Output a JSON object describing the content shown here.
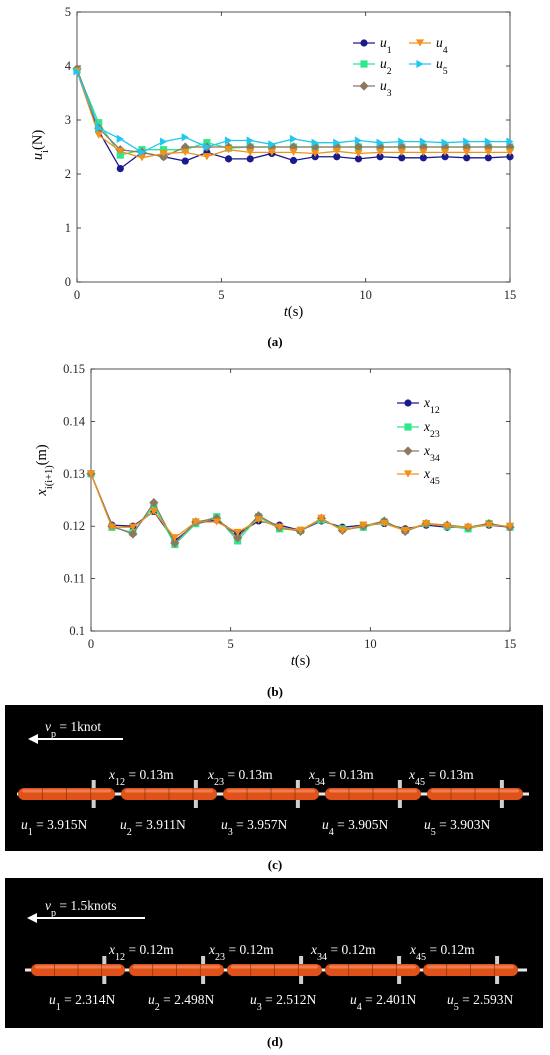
{
  "chart_data": [
    {
      "type": "line",
      "panel": "a",
      "caption": "(a)",
      "ylabel": "u_i(N)",
      "xlabel": "t(s)",
      "xlim": [
        0,
        15
      ],
      "ylim": [
        0,
        5
      ],
      "xticks": [
        0,
        5,
        10,
        15
      ],
      "yticks": [
        0,
        1,
        2,
        3,
        4,
        5
      ],
      "grid": false,
      "legend_position": "top-right",
      "x": [
        0,
        0.75,
        1.5,
        2.25,
        3.0,
        3.75,
        4.5,
        5.25,
        6.0,
        6.75,
        7.5,
        8.25,
        9.0,
        9.75,
        10.5,
        11.25,
        12.0,
        12.75,
        13.5,
        14.25,
        15.0
      ],
      "series": [
        {
          "name": "u_1",
          "base": "u",
          "sub": "1",
          "color": "#1a1a8c",
          "marker": "circle",
          "values": [
            3.92,
            2.8,
            2.1,
            2.4,
            2.32,
            2.24,
            2.4,
            2.28,
            2.28,
            2.38,
            2.25,
            2.32,
            2.32,
            2.28,
            2.32,
            2.3,
            2.3,
            2.32,
            2.3,
            2.3,
            2.32
          ]
        },
        {
          "name": "u_2",
          "base": "u",
          "sub": "2",
          "color": "#2ee890",
          "marker": "square",
          "values": [
            3.92,
            2.95,
            2.35,
            2.45,
            2.45,
            2.45,
            2.58,
            2.48,
            2.5,
            2.5,
            2.5,
            2.5,
            2.5,
            2.5,
            2.5,
            2.5,
            2.5,
            2.5,
            2.5,
            2.5,
            2.5
          ]
        },
        {
          "name": "u_3",
          "base": "u",
          "sub": "3",
          "color": "#8c7860",
          "marker": "diamond",
          "values": [
            3.95,
            2.85,
            2.45,
            2.4,
            2.32,
            2.5,
            2.5,
            2.5,
            2.5,
            2.5,
            2.5,
            2.5,
            2.5,
            2.5,
            2.5,
            2.5,
            2.5,
            2.5,
            2.5,
            2.5,
            2.5
          ]
        },
        {
          "name": "u_4",
          "base": "u",
          "sub": "4",
          "color": "#f39018",
          "marker": "triangle-down",
          "values": [
            3.9,
            2.72,
            2.42,
            2.3,
            2.38,
            2.4,
            2.32,
            2.45,
            2.4,
            2.4,
            2.4,
            2.38,
            2.42,
            2.38,
            2.4,
            2.4,
            2.4,
            2.4,
            2.4,
            2.4,
            2.4
          ]
        },
        {
          "name": "u_5",
          "base": "u",
          "sub": "5",
          "color": "#20c8f0",
          "marker": "triangle-right",
          "values": [
            3.9,
            2.85,
            2.65,
            2.4,
            2.6,
            2.68,
            2.5,
            2.62,
            2.62,
            2.55,
            2.65,
            2.58,
            2.58,
            2.62,
            2.58,
            2.6,
            2.6,
            2.58,
            2.6,
            2.6,
            2.6
          ]
        }
      ]
    },
    {
      "type": "line",
      "panel": "b",
      "caption": "(b)",
      "ylabel": "x_{i(i+1)}(m)",
      "xlabel": "t(s)",
      "xlim": [
        0,
        15
      ],
      "ylim": [
        0.1,
        0.15
      ],
      "xticks": [
        0,
        5,
        10,
        15
      ],
      "yticks": [
        0.1,
        0.11,
        0.12,
        0.13,
        0.14,
        0.15
      ],
      "grid": false,
      "legend_position": "top-right",
      "x": [
        0,
        0.75,
        1.5,
        2.25,
        3.0,
        3.75,
        4.5,
        5.25,
        6.0,
        6.75,
        7.5,
        8.25,
        9.0,
        9.75,
        10.5,
        11.25,
        12.0,
        12.75,
        13.5,
        14.25,
        15.0
      ],
      "series": [
        {
          "name": "x_12",
          "base": "x",
          "sub": "12",
          "color": "#1a1a8c",
          "marker": "circle",
          "values": [
            0.13,
            0.1202,
            0.12,
            0.1228,
            0.1172,
            0.1205,
            0.1212,
            0.1185,
            0.121,
            0.1202,
            0.1192,
            0.121,
            0.1198,
            0.1202,
            0.1205,
            0.1195,
            0.1202,
            0.1198,
            0.1198,
            0.1202,
            0.1198
          ]
        },
        {
          "name": "x_23",
          "base": "x",
          "sub": "23",
          "color": "#2ee890",
          "marker": "square",
          "values": [
            0.13,
            0.1198,
            0.1188,
            0.1238,
            0.1165,
            0.1205,
            0.1218,
            0.1172,
            0.1218,
            0.1195,
            0.1192,
            0.1212,
            0.1195,
            0.1198,
            0.1208,
            0.1192,
            0.1205,
            0.12,
            0.1195,
            0.1205,
            0.1198
          ]
        },
        {
          "name": "x_34",
          "base": "x",
          "sub": "34",
          "color": "#8c7860",
          "marker": "diamond",
          "values": [
            0.13,
            0.12,
            0.1185,
            0.1245,
            0.1168,
            0.1208,
            0.1215,
            0.1178,
            0.122,
            0.1198,
            0.119,
            0.1215,
            0.1192,
            0.12,
            0.121,
            0.119,
            0.1205,
            0.1202,
            0.1198,
            0.1205,
            0.1198
          ]
        },
        {
          "name": "x_45",
          "base": "x",
          "sub": "45",
          "color": "#f39018",
          "marker": "triangle-down",
          "values": [
            0.13,
            0.1198,
            0.1198,
            0.1228,
            0.1178,
            0.1208,
            0.1208,
            0.1188,
            0.1212,
            0.1198,
            0.1192,
            0.1215,
            0.1192,
            0.1202,
            0.1205,
            0.1192,
            0.1205,
            0.12,
            0.1198,
            0.1202,
            0.12
          ]
        }
      ]
    }
  ],
  "scenes": [
    {
      "panel": "c",
      "caption": "(c)",
      "speed_label": {
        "base": "v",
        "sub": "p",
        "rest": " = 1knot"
      },
      "spacings": [
        {
          "base": "x",
          "sub": "12",
          "rest": " = 0.13m"
        },
        {
          "base": "x",
          "sub": "23",
          "rest": " = 0.13m"
        },
        {
          "base": "x",
          "sub": "34",
          "rest": " = 0.13m"
        },
        {
          "base": "x",
          "sub": "45",
          "rest": " = 0.13m"
        }
      ],
      "forces": [
        {
          "base": "u",
          "sub": "1",
          "rest": " = 3.915N"
        },
        {
          "base": "u",
          "sub": "2",
          "rest": " = 3.911N"
        },
        {
          "base": "u",
          "sub": "3",
          "rest": " = 3.957N"
        },
        {
          "base": "u",
          "sub": "4",
          "rest": " = 3.905N"
        },
        {
          "base": "u",
          "sub": "5",
          "rest": " = 3.903N"
        }
      ],
      "vehicle_color": "#e0521a"
    },
    {
      "panel": "d",
      "caption": "(d)",
      "speed_label": {
        "base": "v",
        "sub": "p",
        "rest": " = 1.5knots"
      },
      "spacings": [
        {
          "base": "x",
          "sub": "12",
          "rest": " = 0.12m"
        },
        {
          "base": "x",
          "sub": "23",
          "rest": " = 0.12m"
        },
        {
          "base": "x",
          "sub": "34",
          "rest": " = 0.12m"
        },
        {
          "base": "x",
          "sub": "45",
          "rest": " = 0.12m"
        }
      ],
      "forces": [
        {
          "base": "u",
          "sub": "1",
          "rest": " = 2.314N"
        },
        {
          "base": "u",
          "sub": "2",
          "rest": " = 2.498N"
        },
        {
          "base": "u",
          "sub": "3",
          "rest": " = 2.512N"
        },
        {
          "base": "u",
          "sub": "4",
          "rest": " = 2.401N"
        },
        {
          "base": "u",
          "sub": "5",
          "rest": " = 2.593N"
        }
      ],
      "vehicle_color": "#e0521a"
    }
  ]
}
